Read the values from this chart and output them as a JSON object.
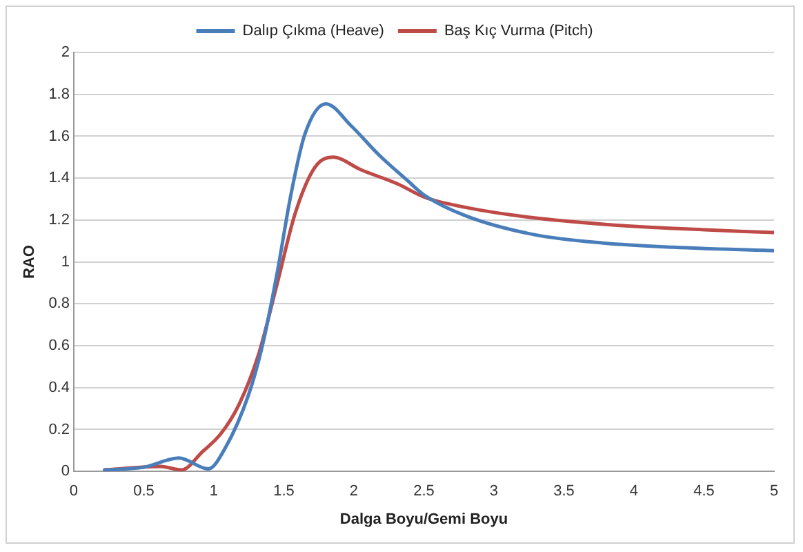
{
  "chart_data": {
    "type": "line",
    "xlabel": "Dalga Boyu/Gemi Boyu",
    "ylabel": "RAO",
    "xlim": [
      0,
      5
    ],
    "xticks": [
      0,
      0.5,
      1,
      1.5,
      2,
      2.5,
      3,
      3.5,
      4,
      4.5,
      5
    ],
    "ylim": [
      0,
      2
    ],
    "yticks": [
      0,
      0.2,
      0.4,
      0.6,
      0.8,
      1,
      1.2,
      1.4,
      1.6,
      1.8,
      2
    ],
    "grid": "y",
    "legend": "top",
    "marker": "none",
    "line_style": "solid",
    "series": [
      {
        "name": "Dalıp Çıkma (Heave)",
        "color": "#4a7ebb",
        "x": [
          0.22,
          0.5,
          0.75,
          0.96,
          1.08,
          1.25,
          1.35,
          1.45,
          1.55,
          1.65,
          1.8,
          1.98,
          2.18,
          2.38,
          2.5,
          2.8,
          3.29,
          3.78,
          4.28,
          5
        ],
        "values": [
          0.007,
          0.02,
          0.064,
          0.012,
          0.11,
          0.37,
          0.61,
          0.94,
          1.32,
          1.61,
          1.755,
          1.65,
          1.51,
          1.39,
          1.32,
          1.22,
          1.13,
          1.09,
          1.07,
          1.054
        ]
      },
      {
        "name": "Baş Kıç Vurma (Pitch)",
        "color": "#be4b48",
        "x": [
          0.22,
          0.62,
          0.77,
          0.92,
          1.05,
          1.18,
          1.32,
          1.45,
          1.58,
          1.72,
          1.85,
          2.05,
          2.32,
          2.5,
          2.8,
          3.29,
          3.78,
          4.28,
          5
        ],
        "values": [
          0.007,
          0.024,
          0.007,
          0.095,
          0.18,
          0.32,
          0.56,
          0.89,
          1.23,
          1.45,
          1.5,
          1.44,
          1.37,
          1.31,
          1.26,
          1.21,
          1.18,
          1.16,
          1.14
        ]
      }
    ]
  }
}
